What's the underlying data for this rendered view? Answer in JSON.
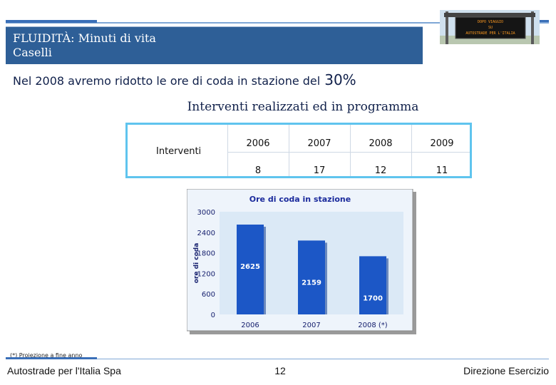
{
  "header": {
    "title_line1": "FLUIDITÀ: Minuti di vita",
    "title_line2": "Caselli"
  },
  "sign": {
    "line1": "DOPO VIAGGIO",
    "line2": "SU",
    "line3": "AUTOSTRADE PER L'ITALIA"
  },
  "subtitle": {
    "text": "Nel 2008 avremo ridotto le ore di coda in stazione del",
    "percent": "30%"
  },
  "table": {
    "title": "Interventi realizzati ed in programma",
    "row_header": "Interventi",
    "years": [
      "2006",
      "2007",
      "2008",
      "2009"
    ],
    "values": [
      "8",
      "17",
      "12",
      "11"
    ]
  },
  "chart_data": {
    "type": "bar",
    "title": "Ore di coda in stazione",
    "ylabel": "ore di coda",
    "xlabel": "",
    "categories": [
      "2006",
      "2007",
      "2008 (*)"
    ],
    "values": [
      2625,
      2159,
      1700
    ],
    "value_labels": [
      "2625",
      "2159",
      "1700"
    ],
    "ylim": [
      0,
      3000
    ],
    "yticks": [
      0,
      600,
      1200,
      1800,
      2400,
      3000
    ],
    "grid": false,
    "colors": {
      "bar": "#1c57c6",
      "bar_dark": "#0f3b8e",
      "plot_bg": "#dbe9f6",
      "frame_bg": "#eef4fb",
      "title": "#1a2a9c",
      "axis_text": "#16206e"
    }
  },
  "footer": {
    "footnote": "(*) Proiezione a fine anno",
    "left": "Autostrade per l'Italia Spa",
    "page": "12",
    "right": "Direzione Esercizio"
  }
}
